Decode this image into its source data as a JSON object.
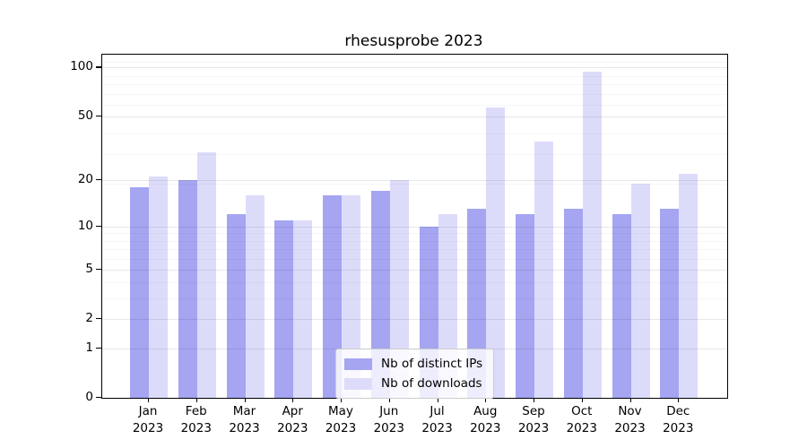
{
  "title": "rhesusprobe 2023",
  "chart_data": {
    "type": "bar",
    "title": "rhesusprobe 2023",
    "yscale": "log1p",
    "ylim": [
      0,
      120
    ],
    "yticks": [
      0,
      1,
      2,
      5,
      10,
      20,
      50,
      100
    ],
    "minor_gridlines_vplus1": [
      4,
      5,
      7,
      8,
      9,
      10,
      20,
      30,
      40,
      60,
      70,
      80,
      90,
      110
    ],
    "categories": [
      "Jan",
      "Feb",
      "Mar",
      "Apr",
      "May",
      "Jun",
      "Jul",
      "Aug",
      "Sep",
      "Oct",
      "Nov",
      "Dec"
    ],
    "year": "2023",
    "series": [
      {
        "name": "Nb of distinct IPs",
        "color": "#a5a5f2",
        "values": [
          18,
          20,
          12,
          11,
          16,
          17,
          10,
          13,
          12,
          13,
          12,
          13
        ]
      },
      {
        "name": "Nb of downloads",
        "color": "#dcdcfa",
        "values": [
          21,
          30,
          16,
          11,
          16,
          20,
          12,
          57,
          35,
          95,
          19,
          22
        ]
      }
    ],
    "grid": true,
    "legend_position": "bottom-center"
  }
}
